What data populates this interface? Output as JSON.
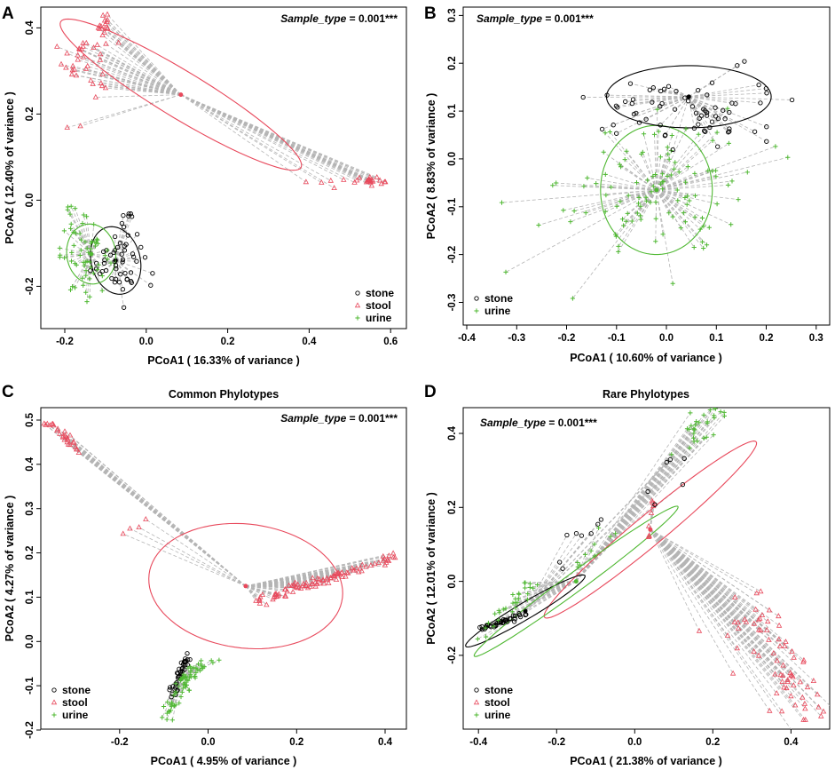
{
  "figure": {
    "legend_labels": {
      "stone": "stone",
      "stool": "stool",
      "urine": "urine"
    },
    "colors": {
      "stone": "#000000",
      "stool": "#e8495c",
      "urine": "#4fb832",
      "spider": "#b5b5b5",
      "frame": "#000000"
    }
  },
  "chart_data": [
    {
      "id": "A",
      "letter": "A",
      "type": "scatter",
      "title": "",
      "annotation": {
        "italic": "Sample_type",
        "rest": " = 0.001***"
      },
      "xlabel": "PCoA1 ( 16.33% of variance )",
      "ylabel": "PCoA2 ( 12.40% of variance )",
      "xlim": [
        -0.25,
        0.63
      ],
      "ylim": [
        -0.29,
        0.44
      ],
      "xticks": [
        -0.2,
        0.0,
        0.2,
        0.4,
        0.6
      ],
      "xtick_labels": [
        "-0.2",
        "0.0",
        "0.2",
        "0.4",
        "0.6"
      ],
      "yticks": [
        -0.2,
        0.0,
        0.2,
        0.4
      ],
      "ytick_labels": [
        "-0.2",
        "0.0",
        "0.2",
        "0.4"
      ],
      "legend": [
        "stone",
        "stool",
        "urine"
      ],
      "legend_position": "bottom-right",
      "groups": [
        {
          "name": "stool",
          "centroid": [
            0.085,
            0.245
          ],
          "ellipse": {
            "rx": 0.34,
            "ry": 0.055,
            "angle": -0.52
          },
          "clusters": [
            {
              "center": [
                -0.15,
                0.33
              ],
              "spread": [
                0.05,
                0.08
              ],
              "n": 34
            },
            {
              "center": [
                -0.1,
                0.41
              ],
              "spread": [
                0.04,
                0.03
              ],
              "n": 14
            },
            {
              "center": [
                0.55,
                0.045
              ],
              "spread": [
                0.04,
                0.01
              ],
              "n": 22
            },
            {
              "center": [
                0.45,
                0.04
              ],
              "spread": [
                0.03,
                0.01
              ],
              "n": 5
            },
            {
              "center": [
                -0.18,
                0.17
              ],
              "spread": [
                0.02,
                0.02
              ],
              "n": 2
            }
          ]
        },
        {
          "name": "stone",
          "centroid": [
            -0.075,
            -0.14
          ],
          "ellipse": {
            "rx": 0.06,
            "ry": 0.08,
            "angle": 0.3
          },
          "clusters": [
            {
              "center": [
                -0.07,
                -0.14
              ],
              "spread": [
                0.06,
                0.065
              ],
              "n": 48
            },
            {
              "center": [
                -0.04,
                -0.04
              ],
              "spread": [
                0.03,
                0.02
              ],
              "n": 6
            }
          ]
        },
        {
          "name": "urine",
          "centroid": [
            -0.135,
            -0.125
          ],
          "ellipse": {
            "rx": 0.06,
            "ry": 0.07,
            "angle": 0.2
          },
          "clusters": [
            {
              "center": [
                -0.15,
                -0.13
              ],
              "spread": [
                0.055,
                0.075
              ],
              "n": 60
            },
            {
              "center": [
                -0.18,
                -0.02
              ],
              "spread": [
                0.02,
                0.02
              ],
              "n": 5
            }
          ]
        }
      ]
    },
    {
      "id": "B",
      "letter": "B",
      "type": "scatter",
      "title": "",
      "annotation": {
        "italic": "Sample_type",
        "rest": " = 0.001***"
      },
      "xlabel": "PCoA1 ( 10.60% of variance )",
      "ylabel": "PCoA2 ( 8.83% of variance )",
      "xlim": [
        -0.4,
        0.32
      ],
      "ylim": [
        -0.34,
        0.31
      ],
      "xticks": [
        -0.4,
        -0.3,
        -0.2,
        -0.1,
        0.0,
        0.1,
        0.2,
        0.3
      ],
      "xtick_labels": [
        "-0.4",
        "-0.3",
        "-0.2",
        "-0.1",
        "0.0",
        "0.1",
        "0.2",
        "0.3"
      ],
      "yticks": [
        -0.3,
        -0.2,
        -0.1,
        0.0,
        0.1,
        0.2,
        0.3
      ],
      "ytick_labels": [
        "-0.3",
        "-0.2",
        "-0.1",
        "0.0",
        "0.1",
        "0.2",
        "0.3"
      ],
      "legend": [
        "stone",
        "urine"
      ],
      "legend_position": "bottom-left",
      "groups": [
        {
          "name": "urine",
          "centroid": [
            -0.02,
            -0.065
          ],
          "ellipse": {
            "rx": 0.112,
            "ry": 0.135,
            "angle": 0.0
          },
          "clusters": [
            {
              "center": [
                -0.02,
                -0.06
              ],
              "spread": [
                0.17,
                0.14
              ],
              "n": 120
            }
          ]
        },
        {
          "name": "stone",
          "centroid": [
            0.045,
            0.13
          ],
          "ellipse": {
            "rx": 0.165,
            "ry": 0.065,
            "angle": 0.0
          },
          "clusters": [
            {
              "center": [
                0.04,
                0.1
              ],
              "spread": [
                0.17,
                0.07
              ],
              "n": 70
            }
          ]
        }
      ]
    },
    {
      "id": "C",
      "letter": "C",
      "type": "scatter",
      "title": "Common Phylotypes",
      "annotation": {
        "italic": "Sample_type",
        "rest": " = 0.001***"
      },
      "xlabel": "PCoA1 ( 4.95% of variance )",
      "ylabel": "PCoA2 ( 4.27% of variance )",
      "xlim": [
        -0.37,
        0.44
      ],
      "ylim": [
        -0.19,
        0.52
      ],
      "xticks": [
        -0.2,
        0.0,
        0.2,
        0.4
      ],
      "xtick_labels": [
        "-0.2",
        "0.0",
        "0.2",
        "0.4"
      ],
      "yticks": [
        -0.2,
        -0.1,
        0.0,
        0.1,
        0.2,
        0.3,
        0.4,
        0.5
      ],
      "ytick_labels": [
        "-0.2",
        "-0.1",
        "0.0",
        "0.1",
        "0.2",
        "0.3",
        "0.4",
        "0.5"
      ],
      "legend": [
        "stone",
        "stool",
        "urine"
      ],
      "legend_position": "bottom-left",
      "groups": [
        {
          "name": "stool",
          "centroid": [
            0.085,
            0.125
          ],
          "ellipse": {
            "rx": 0.22,
            "ry": 0.14,
            "angle": -0.12
          },
          "lines": [
            {
              "from": [
                0.1,
                0.09
              ],
              "to": [
                0.42,
                0.19
              ],
              "jitter": 0.006,
              "n": 95
            },
            {
              "from": [
                -0.37,
                0.5
              ],
              "to": [
                -0.29,
                0.43
              ],
              "jitter": 0.005,
              "n": 28
            },
            {
              "from": [
                -0.18,
                0.24
              ],
              "to": [
                -0.14,
                0.28
              ],
              "jitter": 0.01,
              "n": 4
            }
          ]
        },
        {
          "name": "stone",
          "centroid": [
            -0.06,
            -0.07
          ],
          "ellipse": null,
          "lines": [
            {
              "from": [
                -0.085,
                -0.12
              ],
              "to": [
                -0.045,
                -0.035
              ],
              "jitter": 0.004,
              "n": 40
            }
          ]
        },
        {
          "name": "urine",
          "centroid": [
            -0.06,
            -0.08
          ],
          "ellipse": null,
          "lines": [
            {
              "from": [
                -0.1,
                -0.17
              ],
              "to": [
                -0.03,
                -0.06
              ],
              "jitter": 0.008,
              "n": 55
            },
            {
              "from": [
                -0.04,
                -0.07
              ],
              "to": [
                0.02,
                -0.035
              ],
              "jitter": 0.006,
              "n": 16
            }
          ]
        }
      ]
    },
    {
      "id": "D",
      "letter": "D",
      "type": "scatter",
      "title": "Rare Phylotypes",
      "annotation": {
        "italic": "Sample_type",
        "rest": " = 0.001***"
      },
      "xlabel": "PCoA1 ( 21.38% of variance )",
      "ylabel": "PCoA2 ( 12.01% of variance )",
      "xlim": [
        -0.43,
        0.49
      ],
      "ylim": [
        -0.39,
        0.46
      ],
      "xticks": [
        -0.4,
        -0.2,
        0.0,
        0.2,
        0.4
      ],
      "xtick_labels": [
        "-0.4",
        "-0.2",
        "0.0",
        "0.2",
        "0.4"
      ],
      "yticks": [
        -0.2,
        0.0,
        0.2,
        0.4
      ],
      "ytick_labels": [
        "-0.2",
        "0.0",
        "0.2",
        "0.4"
      ],
      "legend": [
        "stone",
        "stool",
        "urine"
      ],
      "legend_position": "bottom-left",
      "groups": [
        {
          "name": "stool",
          "centroid": [
            0.04,
            0.14
          ],
          "ellipse": {
            "rx": 0.36,
            "ry": 0.04,
            "angle": 0.72
          },
          "lines": [
            {
              "from": [
                0.25,
                -0.07
              ],
              "to": [
                0.46,
                -0.35
              ],
              "jitter": 0.04,
              "n": 70
            },
            {
              "from": [
                0.04,
                0.15
              ],
              "to": [
                0.05,
                0.25
              ],
              "jitter": 0.003,
              "n": 6
            },
            {
              "from": [
                0.03,
                0.11
              ],
              "to": [
                0.04,
                0.12
              ],
              "jitter": 0.003,
              "n": 3
            }
          ]
        },
        {
          "name": "stone",
          "centroid": [
            -0.28,
            -0.08
          ],
          "ellipse": {
            "rx": 0.18,
            "ry": 0.022,
            "angle": 0.56
          },
          "lines": [
            {
              "from": [
                -0.4,
                -0.13
              ],
              "to": [
                -0.28,
                -0.09
              ],
              "jitter": 0.004,
              "n": 40
            },
            {
              "from": [
                -0.2,
                0.05
              ],
              "to": [
                0.15,
                0.35
              ],
              "jitter": 0.02,
              "n": 14
            }
          ]
        },
        {
          "name": "urine",
          "centroid": [
            -0.15,
            0.0
          ],
          "ellipse": {
            "rx": 0.33,
            "ry": 0.025,
            "angle": 0.66
          },
          "lines": [
            {
              "from": [
                -0.41,
                -0.15
              ],
              "to": [
                -0.25,
                0.0
              ],
              "jitter": 0.01,
              "n": 30
            },
            {
              "from": [
                0.14,
                0.38
              ],
              "to": [
                0.21,
                0.45
              ],
              "jitter": 0.02,
              "n": 30
            },
            {
              "from": [
                -0.2,
                0.0
              ],
              "to": [
                0.0,
                0.2
              ],
              "jitter": 0.015,
              "n": 10
            }
          ]
        }
      ]
    }
  ]
}
